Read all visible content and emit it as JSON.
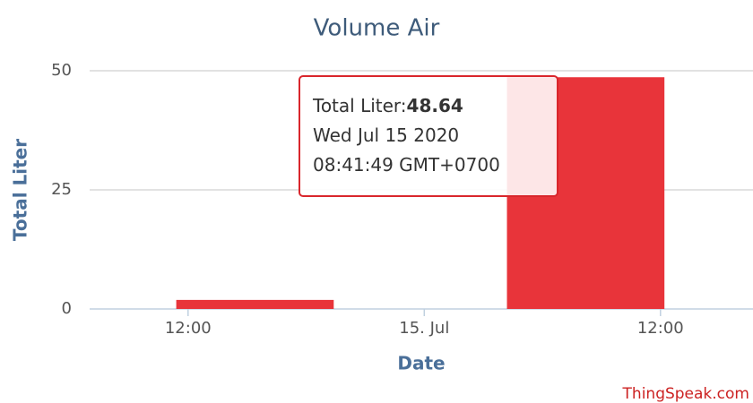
{
  "chart_data": {
    "type": "bar",
    "title": "Volume Air",
    "y_label": "Total Liter",
    "x_label": "Date",
    "credit": "ThingSpeak.com",
    "x": [
      15.4,
      32.2
    ],
    "bar_width": 8,
    "series": [
      {
        "name": "Total Liter",
        "color": "#e8343a",
        "values": [
          1.9,
          48.64
        ]
      }
    ],
    "xlim": [
      7,
      40.7
    ],
    "xticks": [
      {
        "value": 12,
        "label": "12:00"
      },
      {
        "value": 24,
        "label": "15. Jul"
      },
      {
        "value": 36,
        "label": "12:00"
      }
    ],
    "ylim": [
      0,
      50.6
    ],
    "yticks": [
      0,
      25,
      50
    ],
    "grid": true,
    "tooltip": {
      "label": "Total Liter:",
      "date": "Wed Jul 15 2020",
      "time": "08:41:49 GMT+0700"
    }
  }
}
